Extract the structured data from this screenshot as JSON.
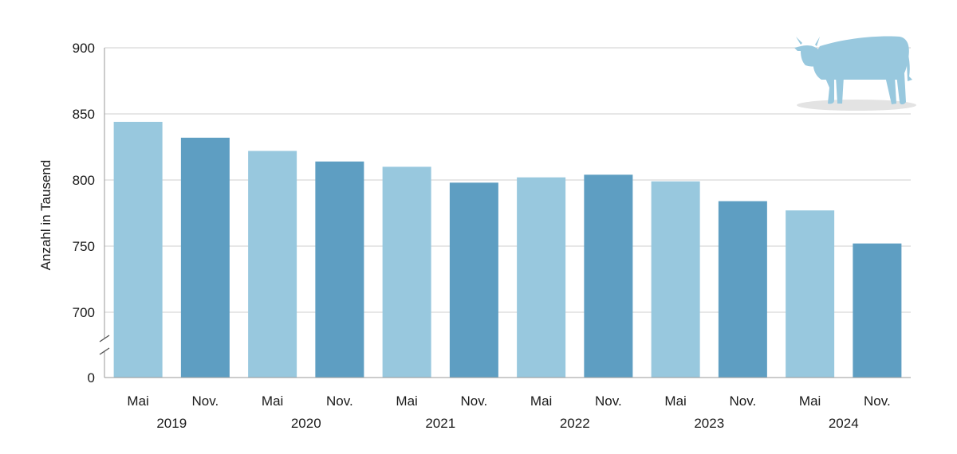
{
  "chart_data": {
    "type": "bar",
    "ylabel": "Anzahl in Tausend",
    "y_ticks": [
      900,
      850,
      800,
      750,
      700
    ],
    "y_zero_label": "0",
    "ylim": [
      700,
      900
    ],
    "y_axis_break": true,
    "grid": true,
    "categories": [
      {
        "month": "Mai",
        "year": "2019",
        "value": 844,
        "color": "#98c8de"
      },
      {
        "month": "Nov.",
        "year": "",
        "value": 832,
        "color": "#5e9ec2"
      },
      {
        "month": "Mai",
        "year": "2020",
        "value": 822,
        "color": "#98c8de"
      },
      {
        "month": "Nov.",
        "year": "",
        "value": 814,
        "color": "#5e9ec2"
      },
      {
        "month": "Mai",
        "year": "2021",
        "value": 810,
        "color": "#98c8de"
      },
      {
        "month": "Nov.",
        "year": "",
        "value": 798,
        "color": "#5e9ec2"
      },
      {
        "month": "Mai",
        "year": "2022",
        "value": 802,
        "color": "#98c8de"
      },
      {
        "month": "Nov.",
        "year": "",
        "value": 804,
        "color": "#5e9ec2"
      },
      {
        "month": "Mai",
        "year": "2023",
        "value": 799,
        "color": "#98c8de"
      },
      {
        "month": "Nov.",
        "year": "",
        "value": 784,
        "color": "#5e9ec2"
      },
      {
        "month": "Mai",
        "year": "2024",
        "value": 777,
        "color": "#98c8de"
      },
      {
        "month": "Nov.",
        "year": "",
        "value": 752,
        "color": "#5e9ec2"
      }
    ],
    "decoration_icon": "cow-icon",
    "icon_color": "#98c8de"
  }
}
